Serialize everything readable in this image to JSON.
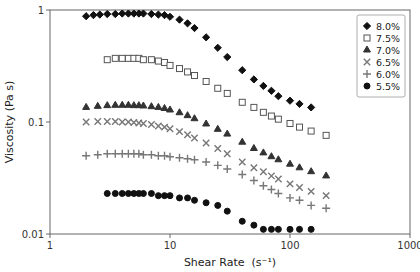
{
  "chart_data": {
    "type": "scatter",
    "xlabel": "Shear Rate  (s⁻¹)",
    "ylabel": "Viscosity (Pa s)",
    "log": true,
    "grid": false,
    "legend": "upper right",
    "xlim": [
      1,
      1000
    ],
    "ylim": [
      0.01,
      1
    ],
    "xticks": [
      1,
      10,
      100,
      1000
    ],
    "yticks": [
      0.01,
      0.1,
      1
    ],
    "series": [
      {
        "name": "8.0%",
        "marker": "diamond",
        "color": "#111111",
        "x": [
          2,
          2.3,
          2.6,
          3,
          3.5,
          4,
          4.5,
          5,
          5.5,
          6,
          7,
          8,
          9,
          10,
          12,
          14,
          16,
          20,
          25,
          30,
          40,
          50,
          60,
          70,
          80,
          100,
          120,
          150
        ],
        "values": [
          0.88,
          0.9,
          0.91,
          0.92,
          0.92,
          0.93,
          0.93,
          0.93,
          0.93,
          0.93,
          0.92,
          0.91,
          0.9,
          0.87,
          0.82,
          0.76,
          0.69,
          0.57,
          0.46,
          0.38,
          0.29,
          0.24,
          0.21,
          0.19,
          0.17,
          0.155,
          0.145,
          0.135
        ]
      },
      {
        "name": "7.5%",
        "marker": "square-open",
        "color": "#555555",
        "x": [
          3,
          3.5,
          4,
          4.5,
          5,
          5.5,
          6,
          7,
          8,
          9,
          10,
          12,
          14,
          16,
          20,
          25,
          30,
          40,
          50,
          60,
          70,
          80,
          100,
          120,
          150,
          200
        ],
        "values": [
          0.36,
          0.37,
          0.37,
          0.37,
          0.37,
          0.37,
          0.36,
          0.36,
          0.35,
          0.34,
          0.32,
          0.3,
          0.28,
          0.26,
          0.23,
          0.2,
          0.18,
          0.15,
          0.135,
          0.122,
          0.113,
          0.106,
          0.097,
          0.09,
          0.083,
          0.076
        ]
      },
      {
        "name": "7.0%",
        "marker": "triangle",
        "color": "#333333",
        "x": [
          2,
          2.5,
          3,
          3.5,
          4,
          4.5,
          5,
          5.5,
          6,
          7,
          8,
          9,
          10,
          12,
          14,
          16,
          20,
          25,
          30,
          40,
          50,
          60,
          70,
          80,
          100,
          120,
          150,
          200
        ],
        "values": [
          0.135,
          0.138,
          0.14,
          0.141,
          0.141,
          0.141,
          0.14,
          0.14,
          0.139,
          0.137,
          0.135,
          0.132,
          0.128,
          0.121,
          0.114,
          0.107,
          0.096,
          0.086,
          0.078,
          0.066,
          0.058,
          0.053,
          0.049,
          0.046,
          0.042,
          0.039,
          0.036,
          0.033
        ]
      },
      {
        "name": "6.5%",
        "marker": "x",
        "color": "#777777",
        "x": [
          2,
          2.5,
          3,
          3.5,
          4,
          4.5,
          5,
          5.5,
          6,
          7,
          8,
          9,
          10,
          12,
          14,
          16,
          20,
          25,
          30,
          40,
          50,
          60,
          70,
          80,
          100,
          120,
          150,
          200
        ],
        "values": [
          0.1,
          0.101,
          0.101,
          0.101,
          0.1,
          0.1,
          0.099,
          0.098,
          0.097,
          0.095,
          0.092,
          0.09,
          0.087,
          0.082,
          0.077,
          0.072,
          0.065,
          0.058,
          0.052,
          0.044,
          0.039,
          0.036,
          0.033,
          0.031,
          0.028,
          0.026,
          0.024,
          0.022
        ]
      },
      {
        "name": "6.0%",
        "marker": "plus",
        "color": "#777777",
        "x": [
          2,
          2.5,
          3,
          3.5,
          4,
          4.5,
          5,
          5.5,
          6,
          7,
          8,
          9,
          10,
          12,
          14,
          16,
          20,
          25,
          30,
          40,
          50,
          60,
          70,
          80,
          100,
          120,
          150,
          200
        ],
        "values": [
          0.05,
          0.051,
          0.052,
          0.052,
          0.052,
          0.052,
          0.052,
          0.052,
          0.051,
          0.051,
          0.05,
          0.05,
          0.049,
          0.048,
          0.047,
          0.046,
          0.044,
          0.041,
          0.038,
          0.034,
          0.03,
          0.027,
          0.025,
          0.023,
          0.021,
          0.02,
          0.018,
          0.017
        ]
      },
      {
        "name": "5.5%",
        "marker": "circle",
        "color": "#111111",
        "x": [
          3,
          3.5,
          4,
          4.5,
          5,
          5.5,
          6,
          7,
          8,
          9,
          10,
          12,
          14,
          16,
          20,
          25,
          30,
          40,
          50,
          60,
          70,
          80,
          100,
          120,
          150
        ],
        "values": [
          0.023,
          0.023,
          0.023,
          0.023,
          0.023,
          0.023,
          0.023,
          0.023,
          0.022,
          0.022,
          0.022,
          0.021,
          0.021,
          0.02,
          0.019,
          0.018,
          0.016,
          0.013,
          0.012,
          0.011,
          0.011,
          0.011,
          0.011,
          0.011,
          0.011
        ]
      }
    ]
  }
}
